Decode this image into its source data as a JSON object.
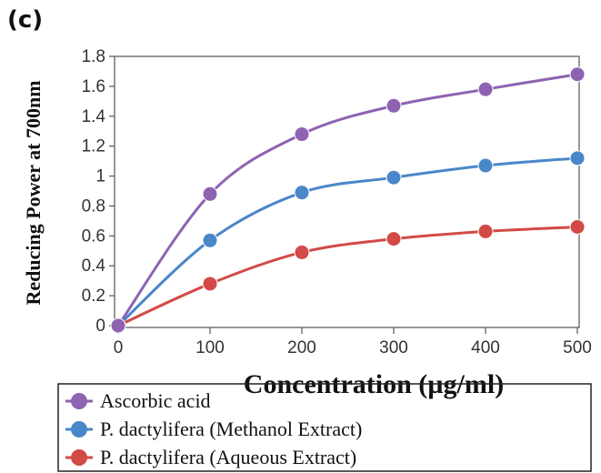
{
  "panel_label": "(c)",
  "chart_data": {
    "type": "line",
    "xlabel": "Concentration (µg/ml)",
    "ylabel": "Reducing Power at 700nm",
    "x": [
      0,
      100,
      200,
      300,
      400,
      500
    ],
    "xticks": [
      "0",
      "100",
      "200",
      "300",
      "400",
      "500"
    ],
    "yticks": [
      "0",
      "0.2",
      "0.4",
      "0.6",
      "0.8",
      "1",
      "1.2",
      "1.4",
      "1.6",
      "1.8"
    ],
    "xlim": [
      0,
      500
    ],
    "ylim": [
      0,
      1.8
    ],
    "grid": false,
    "legend_position": "bottom",
    "series": [
      {
        "name": "Ascorbic acid",
        "color": "#8e63b2",
        "values": [
          0,
          0.88,
          1.28,
          1.47,
          1.58,
          1.68
        ]
      },
      {
        "name": "P. dactylifera (Methanol Extract)",
        "color": "#4a87c9",
        "values": [
          0,
          0.57,
          0.89,
          0.99,
          1.07,
          1.12
        ]
      },
      {
        "name": "P. dactylifera (Aqueous Extract)",
        "color": "#d24a46",
        "values": [
          0,
          0.28,
          0.49,
          0.58,
          0.63,
          0.66
        ]
      }
    ]
  }
}
